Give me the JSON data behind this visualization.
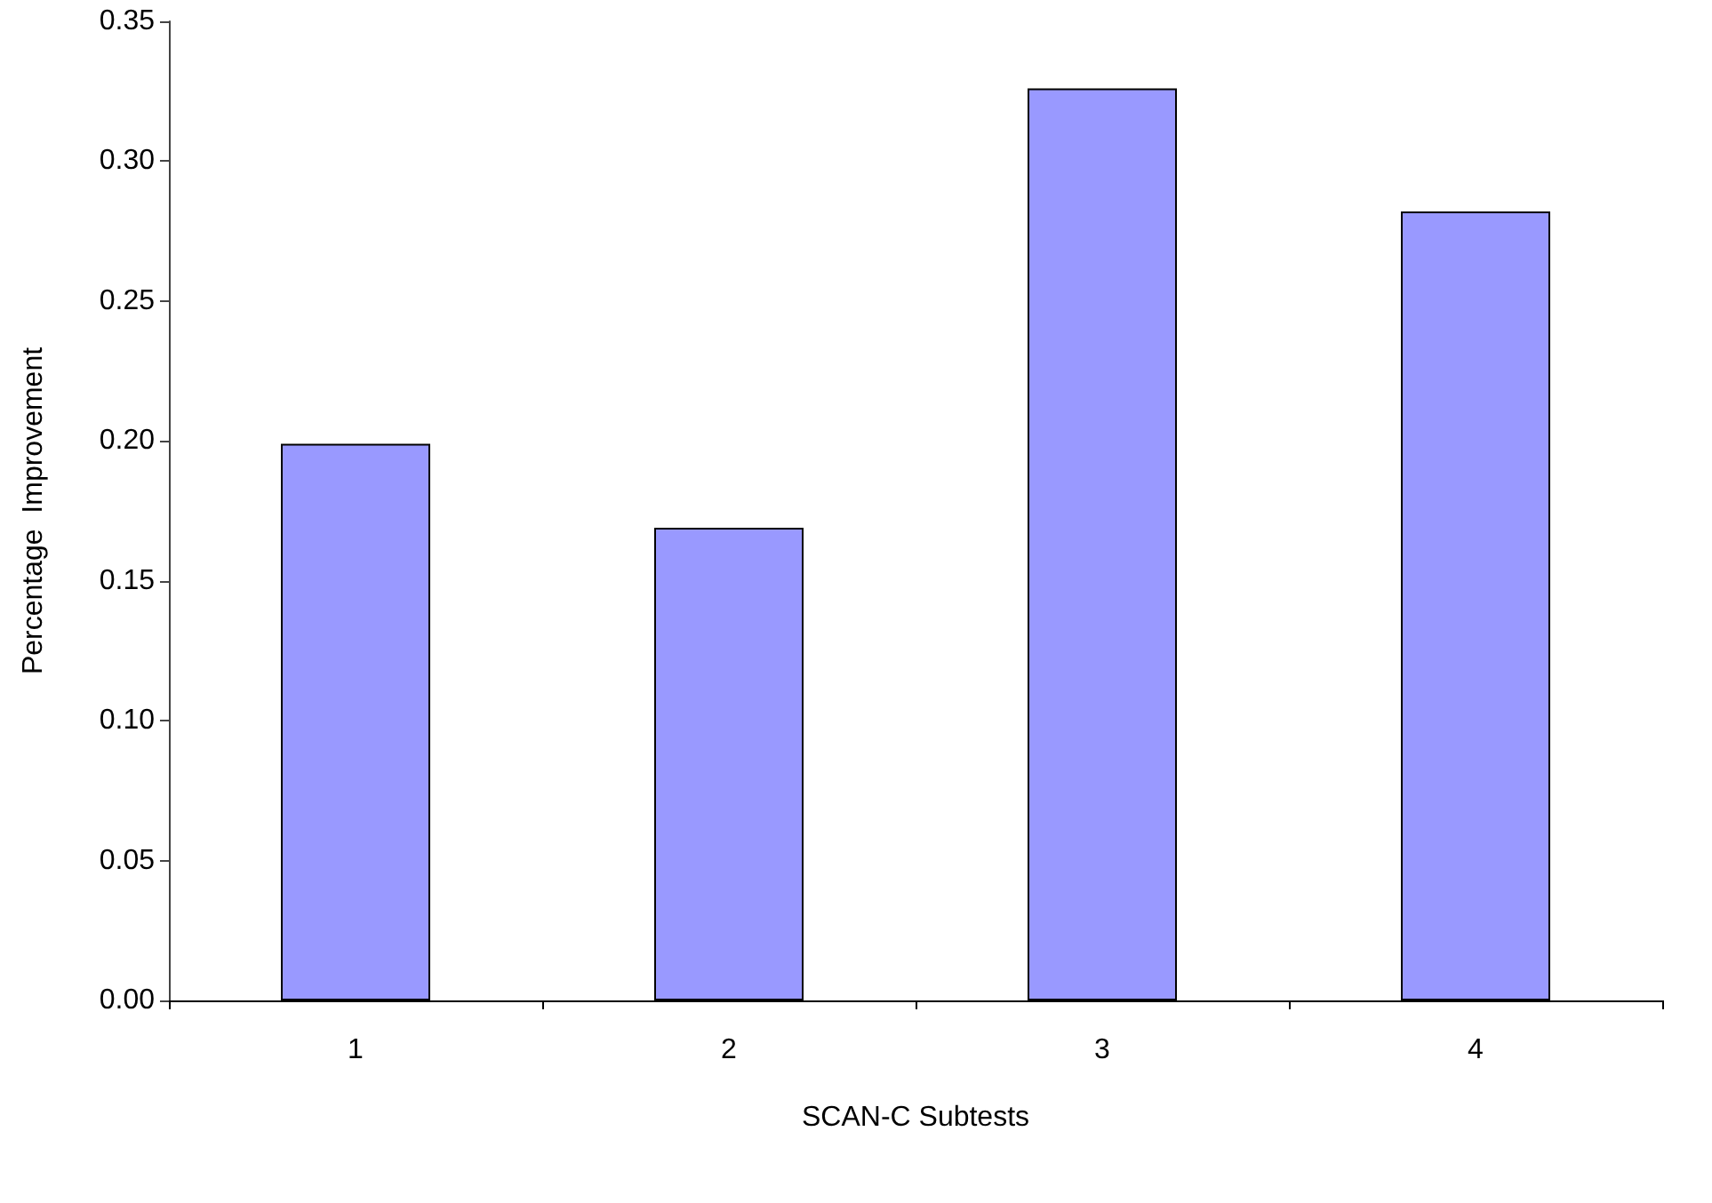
{
  "chart_data": {
    "type": "bar",
    "xlabel": "SCAN-C Subtests",
    "ylabel": "Percentage  Improvement",
    "categories": [
      "1",
      "2",
      "3",
      "4"
    ],
    "values": [
      0.199,
      0.169,
      0.326,
      0.282
    ],
    "color": "#9999ff",
    "ylim": [
      0,
      0.35
    ],
    "yticks": [
      {
        "value": 0,
        "label": "0.00"
      },
      {
        "value": 0.05,
        "label": "0.05"
      },
      {
        "value": 0.1,
        "label": "0.10"
      },
      {
        "value": 0.15,
        "label": "0.15"
      },
      {
        "value": 0.2,
        "label": "0.20"
      },
      {
        "value": 0.25,
        "label": "0.25"
      },
      {
        "value": 0.3,
        "label": "0.30"
      },
      {
        "value": 0.35,
        "label": "0.35"
      }
    ],
    "grid": false
  }
}
